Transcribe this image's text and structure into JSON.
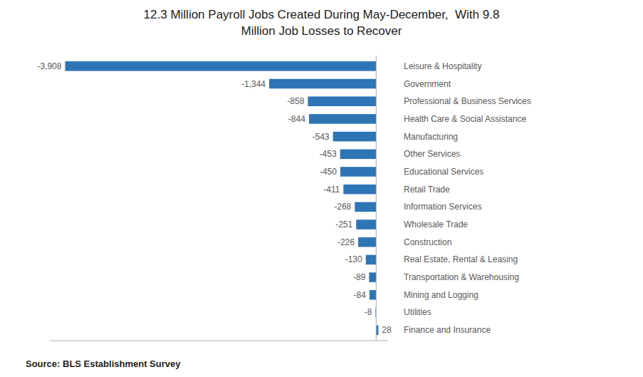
{
  "chart_data": {
    "type": "bar",
    "orientation": "horizontal",
    "title": "12.3 Million Payroll Jobs Created During May-December,  With 9.8\nMillion Job Losses to Recover",
    "categories": [
      "Leisure & Hospitality",
      "Government",
      "Professional & Business Services",
      "Health Care & Social Assistance",
      "Manufacturing",
      "Other Services",
      "Educational Services",
      "Retail Trade",
      "Information Services",
      "Wholesale Trade",
      "Construction",
      "Real Estate, Rental & Leasing",
      "Transportation & Warehousing",
      "Mining and Logging",
      "Utilities",
      "Finance and Insurance"
    ],
    "values": [
      -3908,
      -1344,
      -858,
      -844,
      -543,
      -453,
      -450,
      -411,
      -268,
      -251,
      -226,
      -130,
      -89,
      -84,
      -8,
      28
    ],
    "value_labels": [
      "-3,908",
      "-1,344",
      "-858",
      "-844",
      "-543",
      "-453",
      "-450",
      "-411",
      "-268",
      "-251",
      "-226",
      "-130",
      "-89",
      "-84",
      "-8",
      "28"
    ],
    "data_labels": true,
    "color": "#2e75b6",
    "xlim": [
      -4100,
      150
    ],
    "tick_labels": false,
    "grid": false,
    "annotations": [
      "Source: BLS Establishment Survey"
    ]
  }
}
